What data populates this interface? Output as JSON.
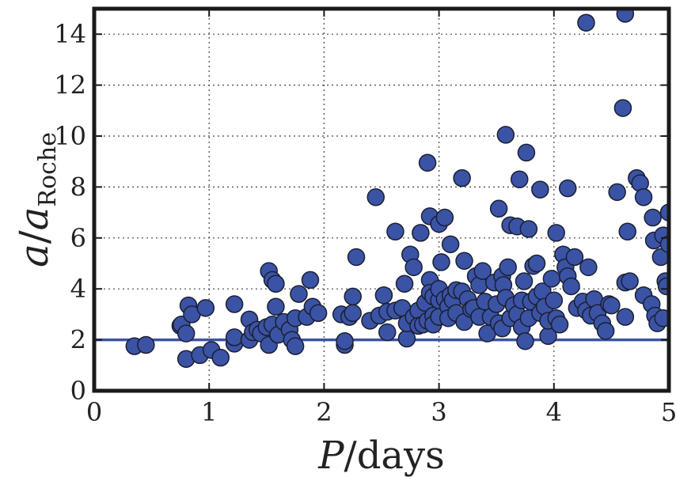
{
  "chart_data": {
    "type": "scatter",
    "xlabel_main": "P",
    "xlabel_unit": "/days",
    "ylabel_main": "a",
    "ylabel_slash": "/",
    "ylabel_base": "a",
    "ylabel_sub": "Roche",
    "xlim": [
      0,
      5
    ],
    "ylim": [
      0,
      15
    ],
    "x_ticks": [
      0,
      1,
      2,
      3,
      4,
      5
    ],
    "y_ticks": [
      0,
      2,
      4,
      6,
      8,
      10,
      12,
      14
    ],
    "x_tick_labels": [
      "0",
      "1",
      "2",
      "3",
      "4",
      "5"
    ],
    "y_tick_labels": [
      "0",
      "2",
      "4",
      "6",
      "8",
      "10",
      "12",
      "14"
    ],
    "grid": true,
    "reference_line_y": 2.0,
    "colors": {
      "point_fill": "#3b53a4",
      "point_edge": "#1a1f33",
      "line": "#3b53a4",
      "axes": "#1a1a1a"
    },
    "points": [
      [
        0.35,
        1.75
      ],
      [
        0.45,
        1.8
      ],
      [
        0.75,
        2.55
      ],
      [
        0.76,
        2.6
      ],
      [
        0.8,
        2.25
      ],
      [
        0.82,
        3.35
      ],
      [
        0.85,
        3.0
      ],
      [
        0.8,
        1.25
      ],
      [
        0.92,
        1.4
      ],
      [
        0.97,
        3.25
      ],
      [
        1.02,
        1.6
      ],
      [
        1.1,
        1.3
      ],
      [
        1.22,
        1.85
      ],
      [
        1.22,
        2.1
      ],
      [
        1.22,
        3.4
      ],
      [
        1.35,
        2.8
      ],
      [
        1.35,
        2.0
      ],
      [
        1.38,
        2.3
      ],
      [
        1.42,
        2.4
      ],
      [
        1.45,
        2.25
      ],
      [
        1.5,
        2.5
      ],
      [
        1.52,
        4.7
      ],
      [
        1.52,
        1.8
      ],
      [
        1.55,
        4.35
      ],
      [
        1.55,
        2.6
      ],
      [
        1.58,
        4.2
      ],
      [
        1.58,
        3.3
      ],
      [
        1.6,
        2.2
      ],
      [
        1.65,
        2.7
      ],
      [
        1.7,
        2.4
      ],
      [
        1.72,
        2.0
      ],
      [
        1.75,
        2.85
      ],
      [
        1.75,
        1.75
      ],
      [
        1.78,
        3.8
      ],
      [
        1.85,
        2.9
      ],
      [
        1.88,
        4.35
      ],
      [
        1.9,
        3.3
      ],
      [
        1.95,
        3.05
      ],
      [
        2.15,
        3.0
      ],
      [
        2.18,
        1.8
      ],
      [
        2.18,
        1.95
      ],
      [
        2.22,
        2.9
      ],
      [
        2.25,
        3.05
      ],
      [
        2.25,
        3.7
      ],
      [
        2.28,
        5.25
      ],
      [
        2.4,
        2.75
      ],
      [
        2.45,
        7.6
      ],
      [
        2.48,
        2.95
      ],
      [
        2.52,
        3.75
      ],
      [
        2.55,
        3.1
      ],
      [
        2.55,
        2.3
      ],
      [
        2.62,
        6.25
      ],
      [
        2.62,
        3.15
      ],
      [
        2.68,
        3.25
      ],
      [
        2.7,
        4.2
      ],
      [
        2.72,
        2.05
      ],
      [
        2.72,
        2.65
      ],
      [
        2.75,
        5.35
      ],
      [
        2.78,
        4.85
      ],
      [
        2.78,
        2.9
      ],
      [
        2.82,
        3.15
      ],
      [
        2.82,
        2.55
      ],
      [
        2.84,
        6.2
      ],
      [
        2.86,
        2.6
      ],
      [
        2.88,
        3.45
      ],
      [
        2.9,
        2.75
      ],
      [
        2.9,
        8.95
      ],
      [
        2.92,
        4.35
      ],
      [
        2.92,
        3.85
      ],
      [
        2.92,
        6.85
      ],
      [
        2.95,
        2.95
      ],
      [
        2.95,
        3.7
      ],
      [
        2.95,
        2.6
      ],
      [
        3.0,
        3.55
      ],
      [
        3.0,
        2.9
      ],
      [
        3.0,
        4.0
      ],
      [
        3.0,
        6.55
      ],
      [
        3.02,
        5.05
      ],
      [
        3.05,
        6.8
      ],
      [
        3.05,
        3.6
      ],
      [
        3.08,
        3.3
      ],
      [
        3.08,
        2.85
      ],
      [
        3.1,
        5.75
      ],
      [
        3.1,
        3.75
      ],
      [
        3.12,
        3.55
      ],
      [
        3.15,
        3.05
      ],
      [
        3.15,
        3.95
      ],
      [
        3.2,
        8.35
      ],
      [
        3.2,
        3.9
      ],
      [
        3.22,
        2.7
      ],
      [
        3.22,
        5.1
      ],
      [
        3.25,
        3.6
      ],
      [
        3.28,
        3.2
      ],
      [
        3.3,
        3.25
      ],
      [
        3.32,
        4.5
      ],
      [
        3.35,
        4.15
      ],
      [
        3.35,
        2.9
      ],
      [
        3.38,
        4.7
      ],
      [
        3.4,
        3.5
      ],
      [
        3.42,
        2.25
      ],
      [
        3.45,
        2.9
      ],
      [
        3.48,
        4.25
      ],
      [
        3.5,
        3.4
      ],
      [
        3.52,
        7.15
      ],
      [
        3.52,
        2.65
      ],
      [
        3.55,
        2.45
      ],
      [
        3.55,
        4.5
      ],
      [
        3.56,
        4.15
      ],
      [
        3.58,
        10.05
      ],
      [
        3.58,
        3.65
      ],
      [
        3.6,
        4.85
      ],
      [
        3.62,
        6.5
      ],
      [
        3.62,
        2.85
      ],
      [
        3.65,
        3.35
      ],
      [
        3.68,
        6.45
      ],
      [
        3.68,
        3.0
      ],
      [
        3.7,
        8.3
      ],
      [
        3.72,
        3.55
      ],
      [
        3.72,
        2.5
      ],
      [
        3.74,
        4.3
      ],
      [
        3.75,
        1.95
      ],
      [
        3.76,
        9.35
      ],
      [
        3.78,
        6.35
      ],
      [
        3.78,
        2.85
      ],
      [
        3.8,
        3.5
      ],
      [
        3.82,
        4.9
      ],
      [
        3.85,
        5.0
      ],
      [
        3.85,
        3.7
      ],
      [
        3.88,
        7.9
      ],
      [
        3.88,
        3.05
      ],
      [
        3.9,
        3.9
      ],
      [
        3.92,
        3.3
      ],
      [
        3.95,
        2.15
      ],
      [
        3.95,
        2.75
      ],
      [
        3.98,
        4.4
      ],
      [
        4.0,
        3.55
      ],
      [
        4.02,
        6.2
      ],
      [
        4.02,
        2.85
      ],
      [
        4.05,
        2.6
      ],
      [
        4.08,
        5.35
      ],
      [
        4.1,
        4.85
      ],
      [
        4.12,
        7.95
      ],
      [
        4.12,
        4.5
      ],
      [
        4.15,
        4.1
      ],
      [
        4.18,
        5.25
      ],
      [
        4.2,
        3.25
      ],
      [
        4.25,
        3.5
      ],
      [
        4.28,
        14.45
      ],
      [
        4.28,
        3.15
      ],
      [
        4.3,
        4.85
      ],
      [
        4.32,
        2.95
      ],
      [
        4.35,
        3.6
      ],
      [
        4.38,
        3.05
      ],
      [
        4.42,
        2.65
      ],
      [
        4.45,
        2.35
      ],
      [
        4.48,
        3.4
      ],
      [
        4.5,
        3.35
      ],
      [
        4.55,
        7.8
      ],
      [
        4.6,
        11.1
      ],
      [
        4.62,
        14.8
      ],
      [
        4.62,
        2.9
      ],
      [
        4.62,
        4.25
      ],
      [
        4.64,
        6.25
      ],
      [
        4.66,
        4.3
      ],
      [
        4.72,
        8.35
      ],
      [
        4.75,
        8.15
      ],
      [
        4.78,
        7.6
      ],
      [
        4.78,
        3.75
      ],
      [
        4.85,
        3.4
      ],
      [
        4.86,
        6.8
      ],
      [
        4.87,
        5.9
      ],
      [
        4.88,
        2.95
      ],
      [
        4.9,
        2.65
      ],
      [
        4.93,
        5.25
      ],
      [
        4.95,
        6.1
      ],
      [
        4.95,
        2.85
      ],
      [
        4.97,
        4.3
      ],
      [
        4.98,
        4.1
      ],
      [
        5.0,
        7.0
      ],
      [
        5.0,
        5.75
      ]
    ]
  }
}
